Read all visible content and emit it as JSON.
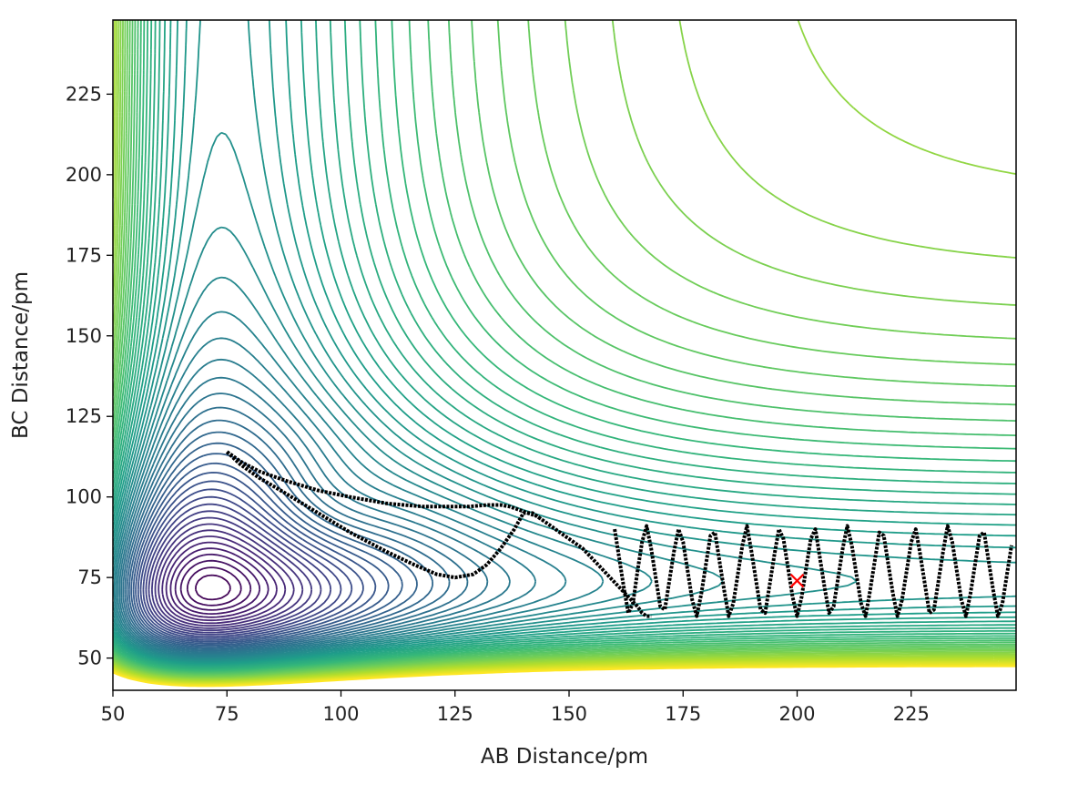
{
  "chart_data": {
    "type": "contour",
    "title": "",
    "xlabel": "AB Distance/pm",
    "ylabel": "BC Distance/pm",
    "xlim": [
      50,
      248
    ],
    "ylim": [
      40,
      248
    ],
    "xticks": [
      50,
      75,
      100,
      125,
      150,
      175,
      200,
      225
    ],
    "yticks": [
      50,
      75,
      100,
      125,
      150,
      175,
      200,
      225
    ],
    "colormap": "viridis",
    "contour_levels": 60,
    "colors": {
      "contour_low": "#440154",
      "contour_high": "#fde725",
      "trajectory": "#000000",
      "marker": "#ff0000"
    },
    "series": [
      {
        "type": "line",
        "x": [
          75,
          78,
          82,
          88,
          95,
          102,
          110,
          118,
          124,
          128,
          132,
          135,
          137,
          139,
          141,
          143,
          145,
          147,
          149,
          151,
          153,
          155,
          157,
          159,
          161,
          163,
          165,
          166,
          167,
          168
        ],
        "y": [
          114,
          111,
          108,
          105,
          102,
          100,
          98,
          97,
          97,
          97,
          97.5,
          97.5,
          97,
          96,
          95,
          94,
          92,
          90,
          88,
          86,
          84,
          81,
          78,
          75,
          72,
          69,
          66,
          64,
          63,
          63
        ]
      },
      {
        "type": "line",
        "x": [
          75,
          78,
          82,
          88,
          95,
          102,
          110,
          116,
          121,
          125,
          129,
          132,
          135,
          138,
          140,
          142,
          144
        ],
        "y": [
          114,
          110,
          106,
          101,
          95,
          89,
          83,
          79,
          76,
          75,
          76,
          79,
          84,
          90,
          95,
          95,
          93
        ]
      },
      {
        "type": "line",
        "x": [
          160,
          161,
          162,
          163,
          164,
          165,
          166,
          167,
          168,
          169,
          170,
          171,
          172,
          173,
          174,
          175,
          176,
          177,
          178,
          179,
          180,
          181,
          182,
          183,
          184,
          185,
          186,
          187,
          188,
          189,
          190,
          191,
          192,
          193,
          194,
          195,
          196,
          197,
          198,
          199,
          200,
          201,
          202,
          203,
          204,
          205,
          206,
          207,
          208,
          209,
          210,
          211,
          212,
          213,
          214,
          215,
          216,
          217,
          218,
          219,
          220,
          221,
          222,
          223,
          224,
          225,
          226,
          227,
          228,
          229,
          230,
          231,
          232,
          233,
          234,
          235,
          236,
          237,
          238,
          239,
          240,
          241,
          242,
          243,
          244,
          245,
          246,
          247
        ],
        "y": [
          90,
          81,
          72,
          64,
          67,
          77,
          86,
          91,
          84,
          75,
          66,
          65,
          74,
          83,
          90,
          86,
          77,
          68,
          63,
          70,
          79,
          88,
          89,
          80,
          71,
          63,
          67,
          76,
          85,
          91,
          83,
          74,
          65,
          64,
          73,
          82,
          90,
          87,
          78,
          69,
          63,
          69,
          78,
          87,
          90,
          81,
          72,
          64,
          66,
          75,
          84,
          91,
          85,
          76,
          67,
          63,
          71,
          80,
          89,
          88,
          79,
          70,
          63,
          68,
          77,
          86,
          90,
          82,
          73,
          64,
          65,
          74,
          83,
          91,
          86,
          77,
          68,
          63,
          70,
          79,
          88,
          89,
          80,
          71,
          63,
          67,
          76,
          85
        ]
      },
      {
        "type": "scatter",
        "marker": "x",
        "x": [
          200
        ],
        "y": [
          74
        ]
      }
    ]
  }
}
